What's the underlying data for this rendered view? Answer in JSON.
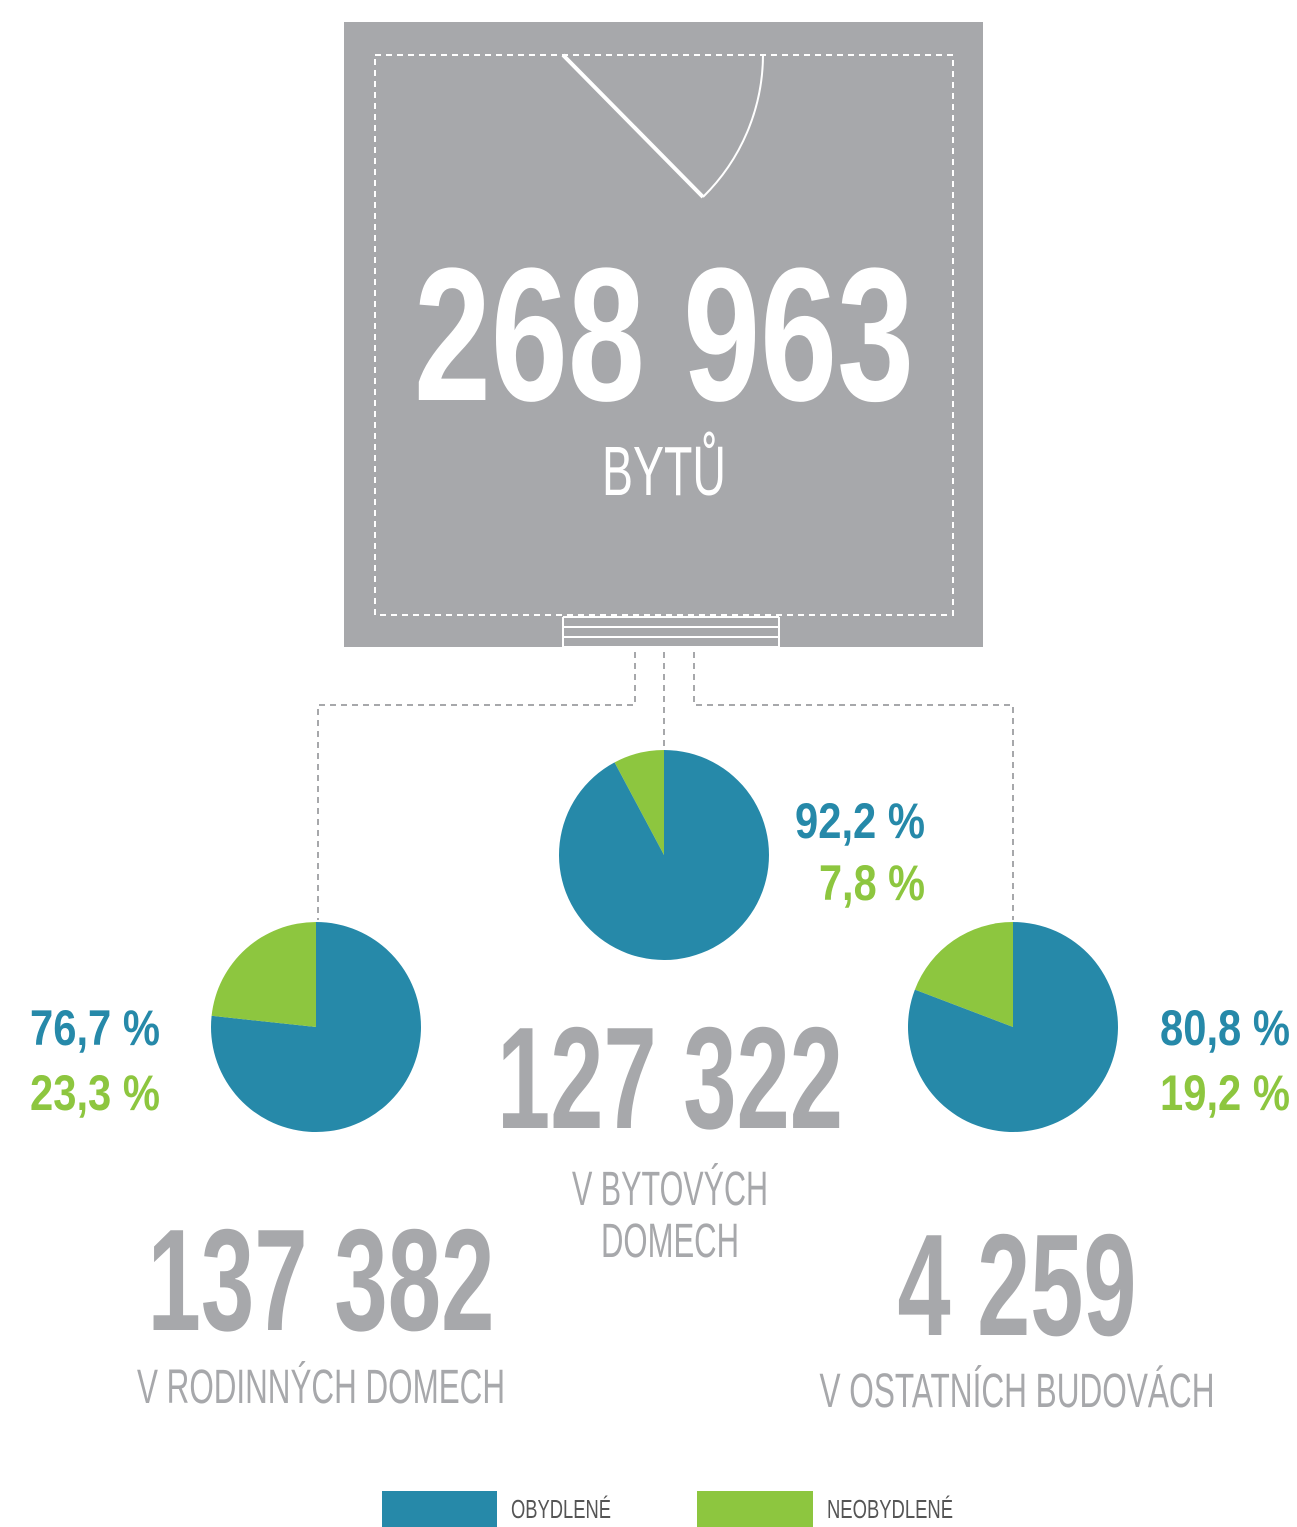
{
  "header": {
    "total": "268 963",
    "unit": "BYTŮ"
  },
  "chart_data": [
    {
      "type": "pie",
      "title": "137 382",
      "subtitle": [
        "V RODINNÝCH DOMECH"
      ],
      "categories": [
        "OBYDLENÉ",
        "NEOBYDLENÉ"
      ],
      "values": [
        76.7,
        23.3
      ],
      "value_labels": [
        "76,7 %",
        "23,3 %"
      ],
      "colors": [
        "#2689a9",
        "#8dc63f"
      ]
    },
    {
      "type": "pie",
      "title": "127 322",
      "subtitle": [
        "V BYTOVÝCH",
        "DOMECH"
      ],
      "categories": [
        "OBYDLENÉ",
        "NEOBYDLENÉ"
      ],
      "values": [
        92.2,
        7.8
      ],
      "value_labels": [
        "92,2 %",
        "7,8 %"
      ],
      "colors": [
        "#2689a9",
        "#8dc63f"
      ]
    },
    {
      "type": "pie",
      "title": "4 259",
      "subtitle": [
        "V OSTATNÍCH BUDOVÁCH"
      ],
      "categories": [
        "OBYDLENÉ",
        "NEOBYDLENÉ"
      ],
      "values": [
        80.8,
        19.2
      ],
      "value_labels": [
        "80,8 %",
        "19,2 %"
      ],
      "colors": [
        "#2689a9",
        "#8dc63f"
      ]
    }
  ]
}
